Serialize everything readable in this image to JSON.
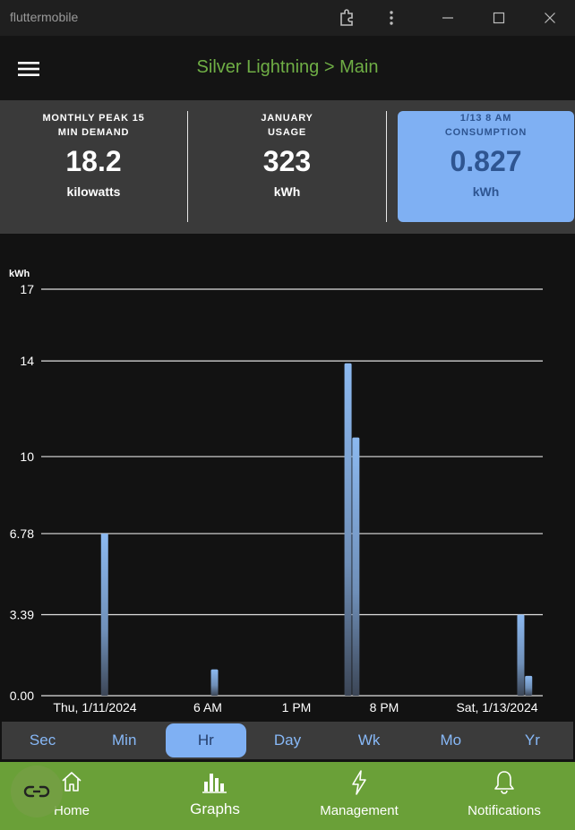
{
  "window": {
    "title": "fluttermobile"
  },
  "appbar": {
    "title": "Silver Lightning > Main"
  },
  "summary": [
    {
      "label_line1": "MONTHLY PEAK 15",
      "label_line2": "MIN DEMAND",
      "value": "18.2",
      "unit": "kilowatts"
    },
    {
      "label_line1": "JANUARY",
      "label_line2": "USAGE",
      "value": "323",
      "unit": "kWh"
    },
    {
      "label_line1": "1/13 8 AM",
      "label_line2": "CONSUMPTION",
      "value": "0.827",
      "unit": "kWh"
    }
  ],
  "chart_data": {
    "type": "bar",
    "ylabel": "kWh",
    "ylim": [
      0,
      17
    ],
    "yticks": [
      "17",
      "14",
      "10",
      "6.78",
      "3.39",
      "0.00"
    ],
    "ytick_values": [
      17,
      14,
      10,
      6.78,
      3.39,
      0
    ],
    "xtick_labels": [
      "Thu, 1/11/2024",
      "6 AM",
      "1 PM",
      "8 PM",
      "Sat, 1/13/2024"
    ],
    "x_start": "2024-01-11T00:00",
    "x_end": "2024-01-13T08:00",
    "series": [
      {
        "values": [
          {
            "x": "2024-01-11T01:00",
            "y": 6.78
          },
          {
            "x": "2024-01-11T15:00",
            "y": 1.1
          },
          {
            "x": "2024-01-12T08:00",
            "y": 13.9
          },
          {
            "x": "2024-01-12T09:00",
            "y": 10.8
          },
          {
            "x": "2024-01-13T06:00",
            "y": 3.39
          },
          {
            "x": "2024-01-13T07:00",
            "y": 0.827
          }
        ]
      }
    ],
    "grid": true,
    "color": "#8cb9f0"
  },
  "range_tabs": [
    "Sec",
    "Min",
    "Hr",
    "Day",
    "Wk",
    "Mo",
    "Yr"
  ],
  "range_selected": "Hr",
  "nav": [
    {
      "label": "Home",
      "icon": "home-icon"
    },
    {
      "label": "Graphs",
      "icon": "bar-chart-icon"
    },
    {
      "label": "Management",
      "icon": "lightning-icon"
    },
    {
      "label": "Notifications",
      "icon": "bell-icon"
    }
  ],
  "nav_selected": "Graphs",
  "colors": {
    "accent_green": "#6aa038",
    "title_green": "#6fae45",
    "highlight_blue": "#7fb0f3",
    "card_text_blue": "#2e5591"
  }
}
